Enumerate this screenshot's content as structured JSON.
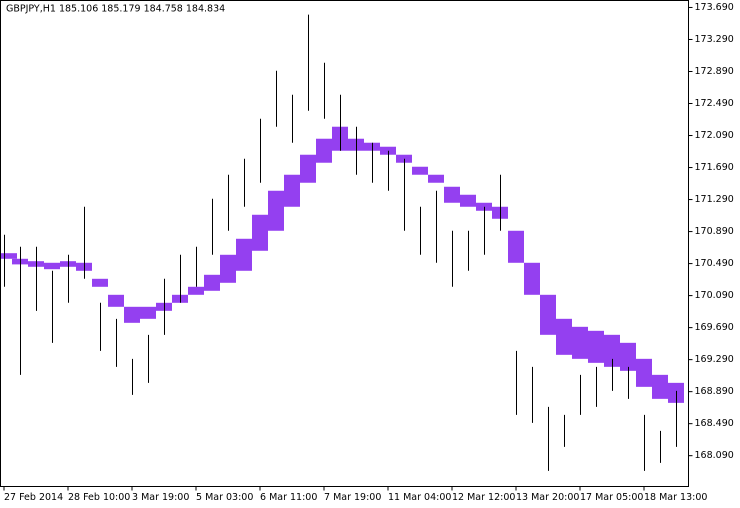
{
  "chart_data": {
    "type": "hl_bars",
    "title": "GBPJPY,H1  185.106 185.179 184.758 184.834",
    "categories": [
      "27 Feb 2014",
      null,
      null,
      null,
      "28 Feb 10:00",
      null,
      null,
      null,
      "3 Mar 19:00",
      null,
      null,
      null,
      "5 Mar 03:00",
      null,
      null,
      null,
      "6 Mar 11:00",
      null,
      null,
      null,
      "7 Mar 19:00",
      null,
      null,
      null,
      "11 Mar 04:00",
      null,
      null,
      null,
      "12 Mar 12:00",
      null,
      null,
      null,
      "13 Mar 20:00",
      null,
      null,
      null,
      "17 Mar 05:00",
      null,
      null,
      null,
      "18 Mar 13:00",
      null,
      null
    ],
    "high": [
      170.85,
      170.7,
      170.7,
      170.4,
      170.6,
      171.2,
      170.0,
      169.8,
      169.3,
      169.6,
      170.3,
      170.6,
      170.7,
      171.3,
      171.6,
      171.8,
      172.3,
      172.9,
      172.6,
      173.6,
      173.0,
      172.6,
      172.2,
      172.0,
      171.9,
      171.8,
      171.2,
      171.4,
      170.9,
      170.9,
      171.2,
      171.6,
      169.4,
      169.2,
      168.7,
      168.6,
      169.1,
      169.2,
      169.3,
      169.2,
      168.6,
      168.4,
      168.9
    ],
    "low": [
      170.2,
      169.1,
      169.9,
      169.5,
      170.0,
      170.3,
      169.4,
      169.2,
      168.85,
      169.0,
      169.6,
      170.0,
      170.2,
      170.6,
      170.9,
      171.2,
      171.5,
      172.2,
      172.0,
      172.4,
      172.3,
      171.9,
      171.6,
      171.5,
      171.4,
      170.9,
      170.6,
      170.5,
      170.2,
      170.4,
      170.6,
      170.9,
      168.6,
      168.5,
      167.9,
      168.2,
      168.6,
      168.7,
      168.9,
      168.8,
      167.9,
      168.0,
      168.2
    ],
    "band_upper": [
      170.62,
      170.55,
      170.52,
      170.5,
      170.52,
      170.5,
      170.3,
      170.1,
      169.95,
      169.95,
      170.0,
      170.1,
      170.2,
      170.35,
      170.6,
      170.8,
      171.1,
      171.4,
      171.6,
      171.85,
      172.05,
      172.2,
      172.05,
      172.0,
      171.95,
      171.85,
      171.7,
      171.6,
      171.45,
      171.35,
      171.25,
      171.2,
      170.9,
      170.5,
      170.1,
      169.8,
      169.7,
      169.65,
      169.6,
      169.5,
      169.3,
      169.1,
      169.0
    ],
    "band_lower": [
      170.55,
      170.48,
      170.45,
      170.42,
      170.45,
      170.4,
      170.2,
      169.95,
      169.75,
      169.8,
      169.9,
      170.0,
      170.1,
      170.15,
      170.25,
      170.4,
      170.65,
      170.9,
      171.2,
      171.5,
      171.75,
      171.9,
      171.9,
      171.9,
      171.85,
      171.75,
      171.6,
      171.5,
      171.25,
      171.2,
      171.15,
      171.05,
      170.5,
      170.1,
      169.6,
      169.35,
      169.3,
      169.25,
      169.2,
      169.15,
      168.95,
      168.8,
      168.75
    ],
    "bar_color": "#000000",
    "band_color": "#9440f0",
    "ylim": [
      167.705,
      173.777
    ],
    "yticks": [
      {
        "value": 173.69,
        "label": "173.690"
      },
      {
        "value": 173.29,
        "label": "173.290"
      },
      {
        "value": 172.89,
        "label": "172.890"
      },
      {
        "value": 172.49,
        "label": "172.490"
      },
      {
        "value": 172.09,
        "label": "172.090"
      },
      {
        "value": 171.69,
        "label": "171.690"
      },
      {
        "value": 171.29,
        "label": "171.290"
      },
      {
        "value": 170.89,
        "label": "170.890"
      },
      {
        "value": 170.49,
        "label": "170.490"
      },
      {
        "value": 170.09,
        "label": "170.090"
      },
      {
        "value": 169.69,
        "label": "169.690"
      },
      {
        "value": 169.29,
        "label": "169.290"
      },
      {
        "value": 168.89,
        "label": "168.890"
      },
      {
        "value": 168.49,
        "label": "168.490"
      },
      {
        "value": 168.09,
        "label": "168.090"
      }
    ]
  }
}
